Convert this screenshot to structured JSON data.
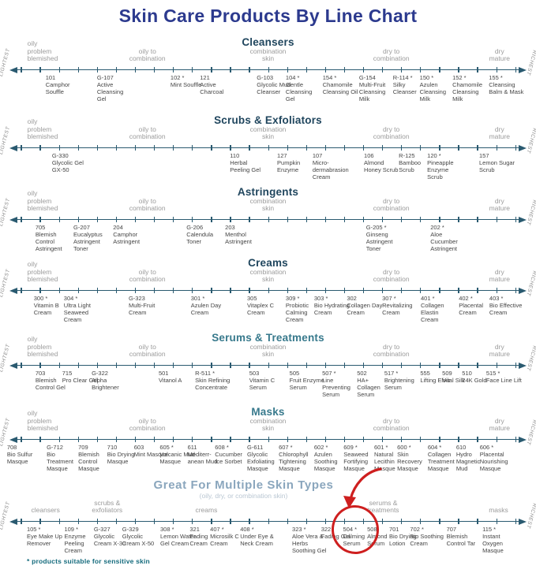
{
  "title": "Skin Care Products By Line Chart",
  "footnote": "* products suitable for sensitive skin",
  "scale": {
    "left": "LIGHTEST",
    "right": "RICHEST"
  },
  "colors": {
    "title": "#2c3a8e",
    "axis": "#2a5a70",
    "category": "#9b9b9b",
    "product": "#454545",
    "footnote": "#156b7d",
    "highlight": "#ce1f1f",
    "header_dark": "#20465e",
    "header_teal": "#37798c",
    "header_light": "#8aa6bd",
    "subtitle_light": "#b9c6d2"
  },
  "default_categories": [
    {
      "label": "oily\nproblem\nblemished",
      "x": 5.1,
      "align": "left"
    },
    {
      "label": "oily to\ncombination",
      "x": 27.5
    },
    {
      "label": "combination\nskin",
      "x": 50
    },
    {
      "label": "dry to\ncombination",
      "x": 73
    },
    {
      "label": "dry\nmature",
      "x": 93.2
    }
  ],
  "chart_data": [
    {
      "type": "line",
      "id": "cleansers",
      "title": "Cleansers",
      "color_key": "header_dark",
      "categories": "default",
      "products": [
        {
          "code": "101",
          "name": "Camphor Souffle",
          "x": 8.5
        },
        {
          "code": "G-107",
          "name": "Active Cleansing Gel",
          "x": 18.1
        },
        {
          "code": "102 *",
          "name": "Mint Souffle",
          "x": 31.8
        },
        {
          "code": "121",
          "name": "Active Charcoal",
          "x": 37.3
        },
        {
          "code": "G-103",
          "name": "Glycolic Mud Cleanser",
          "x": 47.9
        },
        {
          "code": "104 *",
          "name": "Gentle Cleansing Gel",
          "x": 53.3
        },
        {
          "code": "154 *",
          "name": "Chamomile Cleansing Oil",
          "x": 60.2
        },
        {
          "code": "G-154",
          "name": "Multi-Fruit Cleansing Milk",
          "x": 67.0
        },
        {
          "code": "R-114 *",
          "name": "Silky Cleanser",
          "x": 73.3
        },
        {
          "code": "150 *",
          "name": "Azulen Cleansing Milk",
          "x": 78.3
        },
        {
          "code": "152 *",
          "name": "Chamomile Cleansing Milk",
          "x": 84.4
        },
        {
          "code": "155 *",
          "name": "Cleansing Balm & Mask",
          "x": 91.2
        }
      ]
    },
    {
      "type": "line",
      "id": "scrubs-exfoliators",
      "title": "Scrubs & Exfoliators",
      "color_key": "header_dark",
      "categories": "default",
      "products": [
        {
          "code": "G-330",
          "name": "Glycolic Gel GX-50",
          "x": 9.7
        },
        {
          "code": "110",
          "name": "Herbal Peeling Gel",
          "x": 42.9
        },
        {
          "code": "127",
          "name": "Pumpkin Enzyme",
          "x": 51.7
        },
        {
          "code": "107",
          "name": "Micro-dermabrasion Cream",
          "x": 58.3
        },
        {
          "code": "106",
          "name": "Almond Honey Scrub",
          "x": 67.9
        },
        {
          "code": "R-125",
          "name": "Bamboo Scrub",
          "x": 74.4
        },
        {
          "code": "120 *",
          "name": "Pineapple Enzyme Scrub",
          "x": 79.7
        },
        {
          "code": "157",
          "name": "Lemon Sugar Scrub",
          "x": 89.4
        }
      ]
    },
    {
      "type": "line",
      "id": "astringents",
      "title": "Astringents",
      "color_key": "header_dark",
      "categories": "default",
      "products": [
        {
          "code": "705",
          "name": "Blemish Control Astringent",
          "x": 6.6
        },
        {
          "code": "G-207",
          "name": "Eucalyptus Astringent Toner",
          "x": 13.7
        },
        {
          "code": "204",
          "name": "Camphor Astringent",
          "x": 21.1
        },
        {
          "code": "G-206",
          "name": "Calendula Toner",
          "x": 34.8
        },
        {
          "code": "203",
          "name": "Menthol Astringent",
          "x": 42.0
        },
        {
          "code": "G-205 *",
          "name": "Ginseng Astringent Toner",
          "x": 68.3
        },
        {
          "code": "202 *",
          "name": "Aloe Cucumber Astringent",
          "x": 80.3
        }
      ]
    },
    {
      "type": "line",
      "id": "creams",
      "title": "Creams",
      "color_key": "header_dark",
      "categories": "default",
      "products": [
        {
          "code": "300 *",
          "name": "Vitamin B Cream",
          "x": 6.3
        },
        {
          "code": "304 *",
          "name": "Ultra Light Seaweed Cream",
          "x": 11.9
        },
        {
          "code": "G-323",
          "name": "Multi-Fruit Cream",
          "x": 24.0
        },
        {
          "code": "301 *",
          "name": "Azulen Day Cream",
          "x": 35.6
        },
        {
          "code": "305",
          "name": "Vitaplex C Cream",
          "x": 46.1
        },
        {
          "code": "309 *",
          "name": "Probiotic Calming Cream",
          "x": 53.3
        },
        {
          "code": "303 *",
          "name": "Bio Hydrating Cream",
          "x": 58.6
        },
        {
          "code": "302",
          "name": "Collagen Day Cream",
          "x": 64.7
        },
        {
          "code": "307 *",
          "name": "Revitalizing Cream",
          "x": 71.3
        },
        {
          "code": "401 *",
          "name": "Collagen Elastin Cream",
          "x": 78.5
        },
        {
          "code": "402 *",
          "name": "Placental Cream",
          "x": 85.6
        },
        {
          "code": "403 *",
          "name": "Bio Effective Cream",
          "x": 91.3
        }
      ]
    },
    {
      "type": "line",
      "id": "serums-treatments",
      "title": "Serums & Treatments",
      "color_key": "header_teal",
      "categories": "default",
      "products": [
        {
          "code": "703",
          "name": "Blemish Control Gel",
          "x": 6.6
        },
        {
          "code": "715",
          "name": "Pro Clear Gel",
          "x": 11.6
        },
        {
          "code": "G-322",
          "name": "Alpha Brightener",
          "x": 17.1
        },
        {
          "code": "501",
          "name": "Vitanol A",
          "x": 29.6
        },
        {
          "code": "R-511 *",
          "name": "Skin Refining Concentrate",
          "x": 36.4
        },
        {
          "code": "503",
          "name": "Vitamin C Serum",
          "x": 46.5
        },
        {
          "code": "505",
          "name": "Fruit Enzyme Serum",
          "x": 54.0
        },
        {
          "code": "507 *",
          "name": "Line Preventing Serum",
          "x": 60.1
        },
        {
          "code": "502",
          "name": "HA+ Collagen Serum",
          "x": 66.6
        },
        {
          "code": "517 *",
          "name": "Brightening Serum",
          "x": 71.7
        },
        {
          "code": "555",
          "name": "Lifting Elixir",
          "x": 78.4
        },
        {
          "code": "509",
          "name": "Vital Silk",
          "x": 82.5
        },
        {
          "code": "510",
          "name": "24K Gold",
          "x": 86.2
        },
        {
          "code": "515 *",
          "name": "Face Line Lift",
          "x": 90.7
        }
      ]
    },
    {
      "type": "line",
      "id": "masks",
      "title": "Masks",
      "color_key": "header_teal",
      "categories": "default",
      "products": [
        {
          "code": "708",
          "name": "Bio Sulfur Masque",
          "x": 1.3
        },
        {
          "code": "G-712",
          "name": "Bio Treatment Masque",
          "x": 8.7
        },
        {
          "code": "709",
          "name": "Blemish Control Masque",
          "x": 14.6
        },
        {
          "code": "710",
          "name": "Bio Drying Masque",
          "x": 20.0
        },
        {
          "code": "603",
          "name": "Mint Masque",
          "x": 25.0
        },
        {
          "code": "605 *",
          "name": "Volcanic Mud Masque",
          "x": 29.8
        },
        {
          "code": "611",
          "name": "Mediterr-anean Mud",
          "x": 35.0
        },
        {
          "code": "608 *",
          "name": "Cucumber Ice Sorbet",
          "x": 40.1
        },
        {
          "code": "G-611",
          "name": "Glycolic Exfoliating Masque",
          "x": 46.1
        },
        {
          "code": "607 *",
          "name": "Chlorophyll Tightening Masque",
          "x": 52.0
        },
        {
          "code": "602 *",
          "name": "Azulen Soothing Masque",
          "x": 58.6
        },
        {
          "code": "609 *",
          "name": "Seaweed Fortifying Masque",
          "x": 64.1
        },
        {
          "code": "601 *",
          "name": "Natural Lecithin Masque",
          "x": 69.8
        },
        {
          "code": "600 *",
          "name": "Skin Recovery Masque",
          "x": 74.1
        },
        {
          "code": "604 *",
          "name": "Collagen Treatment Masque",
          "x": 79.8
        },
        {
          "code": "610",
          "name": "Hydro Magnetic Mud",
          "x": 85.1
        },
        {
          "code": "606 *",
          "name": "Placental Nourishing Masque",
          "x": 89.5
        }
      ]
    },
    {
      "type": "line",
      "id": "multiple-skin-types",
      "title": "Great For Multiple Skin Types",
      "subtitle": "(oily, dry, or combination skin)",
      "color_key": "header_light",
      "categories": [
        {
          "label": "cleansers",
          "x": 8.5
        },
        {
          "label": "scrubs &\nexfoliators",
          "x": 20
        },
        {
          "label": "creams",
          "x": 38.5
        },
        {
          "label": "serums &\ntreatments",
          "x": 71.5
        },
        {
          "label": "masks",
          "x": 93
        }
      ],
      "products": [
        {
          "code": "105 *",
          "name": "Eye Make Up Remover",
          "x": 5.0
        },
        {
          "code": "109 *",
          "name": "Enzyme Peeling Cream",
          "x": 12.0
        },
        {
          "code": "G-327",
          "name": "Glycolic Cream X-30",
          "x": 17.5
        },
        {
          "code": "G-329",
          "name": "Glycolic Cream X-50",
          "x": 22.8
        },
        {
          "code": "308 *",
          "name": "Lemon Water Gel Cream",
          "x": 29.9
        },
        {
          "code": "321",
          "name": "Fading Cream",
          "x": 35.4
        },
        {
          "code": "407 *",
          "name": "Microsilk C Cream",
          "x": 39.2
        },
        {
          "code": "408 *",
          "name": "Under Eye & Neck Cream",
          "x": 44.8
        },
        {
          "code": "323 *",
          "name": "Aloe Vera & Herbs Soothing Gel",
          "x": 54.5
        },
        {
          "code": "322",
          "name": "Fading Gel",
          "x": 59.9
        },
        {
          "code": "504 *",
          "name": "Calming Serum",
          "x": 64.0,
          "highlight": true
        },
        {
          "code": "508",
          "name": "Almond Serum",
          "x": 68.5
        },
        {
          "code": "701",
          "name": "Bio Drying Lotion",
          "x": 72.6
        },
        {
          "code": "702 *",
          "name": "Bio Soothing Cream",
          "x": 76.5
        },
        {
          "code": "707",
          "name": "Blemish Control Tar",
          "x": 83.3
        },
        {
          "code": "115 *",
          "name": "Instant Oxygen Masque",
          "x": 90.0
        }
      ]
    }
  ]
}
